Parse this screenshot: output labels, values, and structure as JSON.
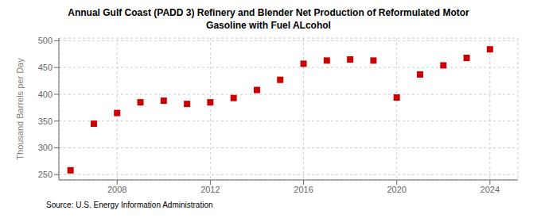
{
  "chart_data": {
    "type": "scatter",
    "title": "Annual Gulf Coast (PADD 3) Refinery and Blender Net Production of Reformulated Motor\nGasoline with Fuel ALcohol",
    "ylabel": "Thousand Barrels per Day",
    "source": "Source: U.S. Energy Information Administration",
    "x": [
      2006,
      2007,
      2008,
      2009,
      2010,
      2011,
      2012,
      2013,
      2014,
      2015,
      2016,
      2017,
      2018,
      2019,
      2020,
      2021,
      2022,
      2023,
      2024
    ],
    "values": [
      258,
      345,
      365,
      385,
      388,
      382,
      385,
      393,
      408,
      427,
      457,
      463,
      465,
      463,
      394,
      437,
      454,
      468,
      484
    ],
    "color": "#cc0000",
    "marker": "square",
    "xlim": [
      2005.5,
      2025.2
    ],
    "xticks": [
      2008,
      2012,
      2016,
      2020,
      2024
    ],
    "ylim": [
      240,
      505
    ],
    "yticks": [
      250,
      300,
      350,
      400,
      450,
      500
    ],
    "grid": true
  }
}
